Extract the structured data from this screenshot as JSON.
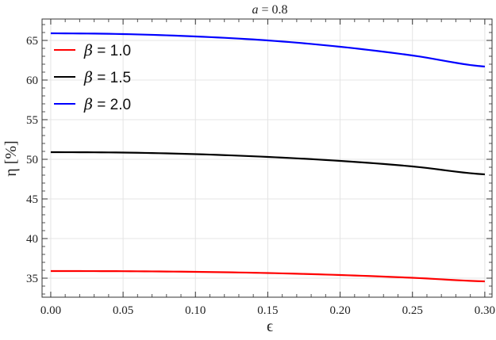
{
  "chart_data": {
    "type": "line",
    "title": "a = 0.8",
    "title_parts": {
      "var": "a",
      "rest": " = 0.8"
    },
    "xlabel": "ϵ",
    "ylabel": "η [%]",
    "xlim": [
      -0.006,
      0.305
    ],
    "ylim": [
      32.6,
      67.7
    ],
    "xticks": [
      "0.00",
      "0.05",
      "0.10",
      "0.15",
      "0.20",
      "0.25",
      "0.30"
    ],
    "yticks": [
      "35",
      "40",
      "45",
      "50",
      "55",
      "60",
      "65"
    ],
    "grid": true,
    "legend_position": "top-left",
    "x": [
      0,
      0.05,
      0.1,
      0.15,
      0.2,
      0.25,
      0.3
    ],
    "series": [
      {
        "name": "β = 1.0",
        "label_var": "β",
        "label_rest": " = 1.0",
        "color": "#ff0000",
        "values": [
          35.9,
          35.88,
          35.8,
          35.65,
          35.4,
          35.05,
          34.6
        ]
      },
      {
        "name": "β = 1.5",
        "label_var": "β",
        "label_rest": " = 1.5",
        "color": "#000000",
        "values": [
          50.9,
          50.85,
          50.65,
          50.3,
          49.8,
          49.1,
          48.1
        ]
      },
      {
        "name": "β = 2.0",
        "label_var": "β",
        "label_rest": " = 2.0",
        "color": "#0000ff",
        "values": [
          65.9,
          65.8,
          65.5,
          65.0,
          64.2,
          63.1,
          61.7
        ]
      }
    ]
  }
}
